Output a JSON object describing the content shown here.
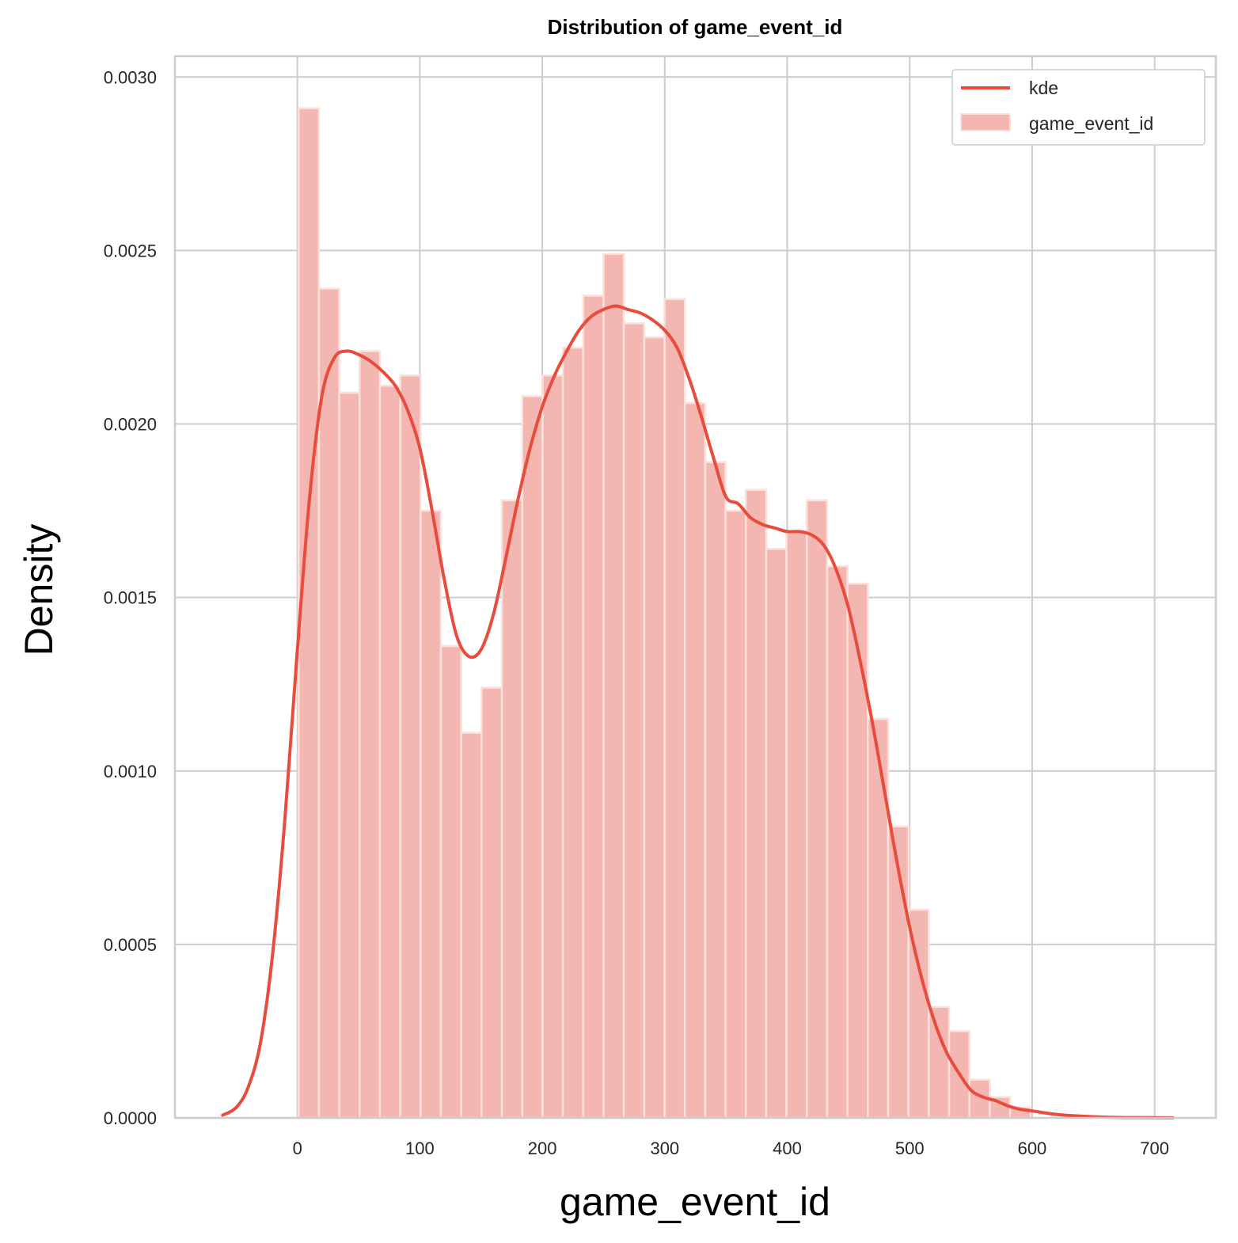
{
  "chart_data": {
    "type": "bar",
    "title": "Distribution of game_event_id",
    "xlabel": "game_event_id",
    "ylabel": "Density",
    "xlim": [
      -100,
      750
    ],
    "ylim": [
      0,
      0.00306
    ],
    "xticks": [
      0,
      100,
      200,
      300,
      400,
      500,
      600,
      700
    ],
    "xtick_labels": [
      "0",
      "100",
      "200",
      "300",
      "400",
      "500",
      "600",
      "700"
    ],
    "yticks": [
      0,
      0.0005,
      0.001,
      0.0015,
      0.002,
      0.0025,
      0.003
    ],
    "ytick_labels": [
      "0.0000",
      "0.0005",
      "0.0010",
      "0.0015",
      "0.0020",
      "0.0025",
      "0.0030"
    ],
    "grid": true,
    "legend_position": "top-right",
    "colors": {
      "kde": "#e74c3c",
      "bars": "#f4b6b0",
      "bar_edge": "#fbe0dc",
      "grid": "#cccccc",
      "axes": "#cccccc"
    },
    "histogram": {
      "name": "game_event_id",
      "bin_start": 1,
      "bin_width": 16.6,
      "values": [
        0.00291,
        0.00239,
        0.00209,
        0.00221,
        0.00211,
        0.00214,
        0.00175,
        0.00136,
        0.00111,
        0.00124,
        0.00178,
        0.00208,
        0.00214,
        0.00222,
        0.00237,
        0.00249,
        0.00229,
        0.00225,
        0.00236,
        0.00206,
        0.00189,
        0.00175,
        0.00181,
        0.00164,
        0.00169,
        0.00178,
        0.00159,
        0.00154,
        0.00115,
        0.00084,
        0.0006,
        0.00032,
        0.00025,
        0.00011,
        6e-05,
        3e-05
      ]
    },
    "kde": {
      "name": "kde",
      "x": [
        -61,
        -50,
        -40,
        -30,
        -20,
        -10,
        0,
        10,
        20,
        30,
        40,
        50,
        60,
        70,
        80,
        90,
        100,
        110,
        120,
        130,
        140,
        150,
        160,
        170,
        180,
        190,
        200,
        210,
        220,
        230,
        240,
        250,
        260,
        270,
        280,
        290,
        300,
        310,
        320,
        330,
        340,
        350,
        360,
        370,
        380,
        390,
        400,
        410,
        420,
        430,
        440,
        450,
        460,
        470,
        480,
        490,
        500,
        510,
        520,
        530,
        540,
        550,
        560,
        570,
        580,
        590,
        600,
        620,
        640,
        660,
        680,
        700,
        715
      ],
      "y": [
        8e-06,
        3e-05,
        9e-05,
        0.00022,
        0.00048,
        0.00087,
        0.00135,
        0.00179,
        0.00208,
        0.00219,
        0.00221,
        0.0022,
        0.00218,
        0.00215,
        0.00211,
        0.00204,
        0.00193,
        0.00175,
        0.00155,
        0.00139,
        0.00133,
        0.00135,
        0.00145,
        0.00161,
        0.00178,
        0.00193,
        0.00205,
        0.00214,
        0.00221,
        0.00227,
        0.00231,
        0.00233,
        0.00234,
        0.00233,
        0.00232,
        0.0023,
        0.00227,
        0.00222,
        0.00213,
        0.00202,
        0.0019,
        0.00179,
        0.00177,
        0.00173,
        0.00171,
        0.0017,
        0.00169,
        0.00169,
        0.00168,
        0.00165,
        0.00158,
        0.00147,
        0.00131,
        0.00113,
        0.00093,
        0.00073,
        0.00055,
        0.0004,
        0.00028,
        0.00019,
        0.00013,
        8e-05,
        6e-05,
        5e-05,
        3.5e-05,
        2.5e-05,
        2e-05,
        1e-05,
        5e-06,
        2e-06,
        1e-06,
        5e-07,
        2e-07
      ]
    },
    "legend": [
      {
        "label": "kde",
        "kind": "line"
      },
      {
        "label": "game_event_id",
        "kind": "patch"
      }
    ]
  }
}
